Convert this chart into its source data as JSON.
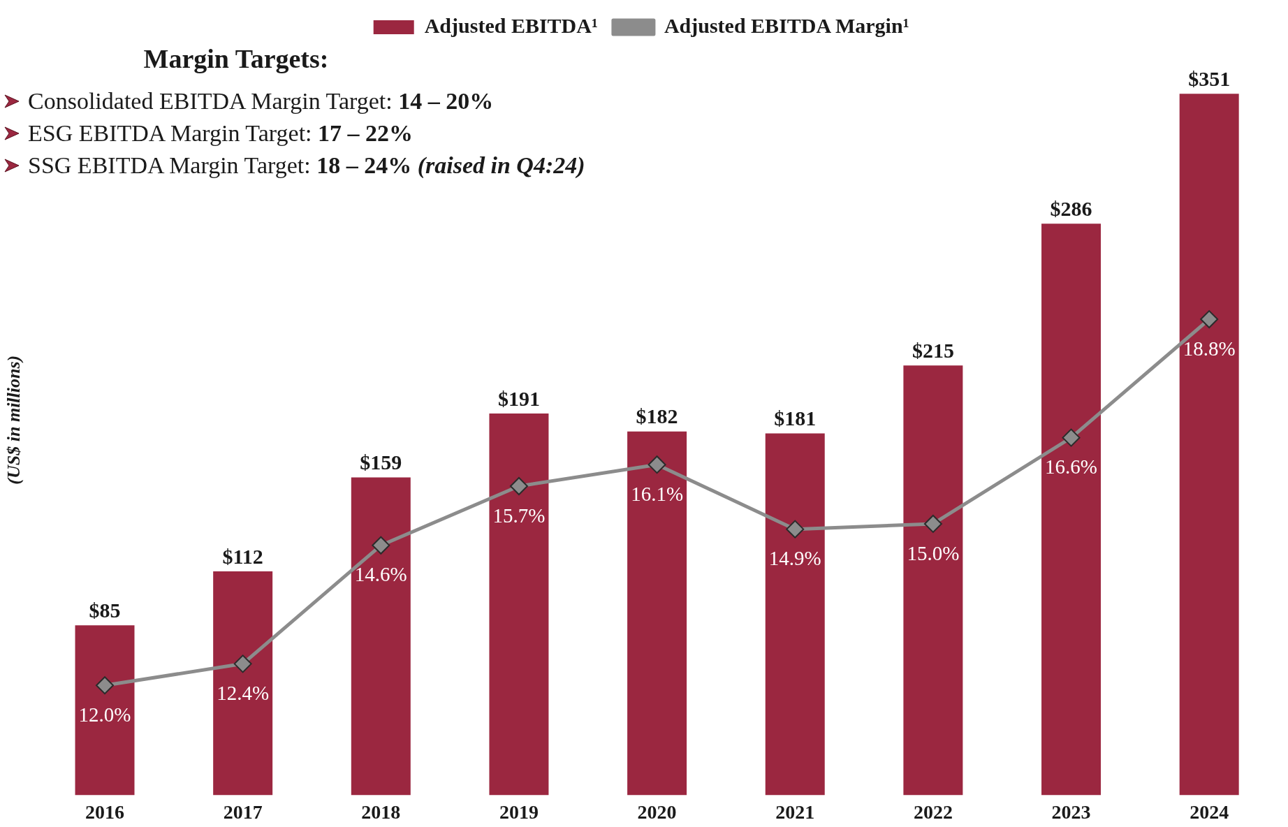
{
  "chart_data": {
    "type": "bar",
    "categories": [
      "2016",
      "2017",
      "2018",
      "2019",
      "2020",
      "2021",
      "2022",
      "2023",
      "2024"
    ],
    "ylabel": "(US$ in millions)",
    "legend": "top",
    "tick_labels": "x",
    "marker": "diamond",
    "annotations": [
      "Margin Targets:",
      "Consolidated EBITDA Margin Target: 14 – 20%",
      "ESG EBITDA Margin Target: 17 – 22%",
      "SSG EBITDA Margin Target: 18 – 24% (raised in Q4:24)"
    ],
    "series": [
      {
        "name": "Adjusted EBITDA¹",
        "color": "#9b2740",
        "values": [
          85,
          112,
          159,
          191,
          182,
          181,
          215,
          286,
          351
        ],
        "value_labels": [
          "$85",
          "$112",
          "$159",
          "$191",
          "$182",
          "$181",
          "$215",
          "$286",
          "$351"
        ]
      },
      {
        "name": "Adjusted EBITDA Margin¹",
        "type": "line",
        "axis": "y2",
        "color": "#8c8c8c",
        "values": [
          12.0,
          12.4,
          14.6,
          15.7,
          16.1,
          14.9,
          15.0,
          16.6,
          18.8
        ],
        "value_labels": [
          "12.0%",
          "12.4%",
          "14.6%",
          "15.7%",
          "16.1%",
          "14.9%",
          "15.0%",
          "16.6%",
          "18.8%"
        ]
      }
    ]
  }
}
